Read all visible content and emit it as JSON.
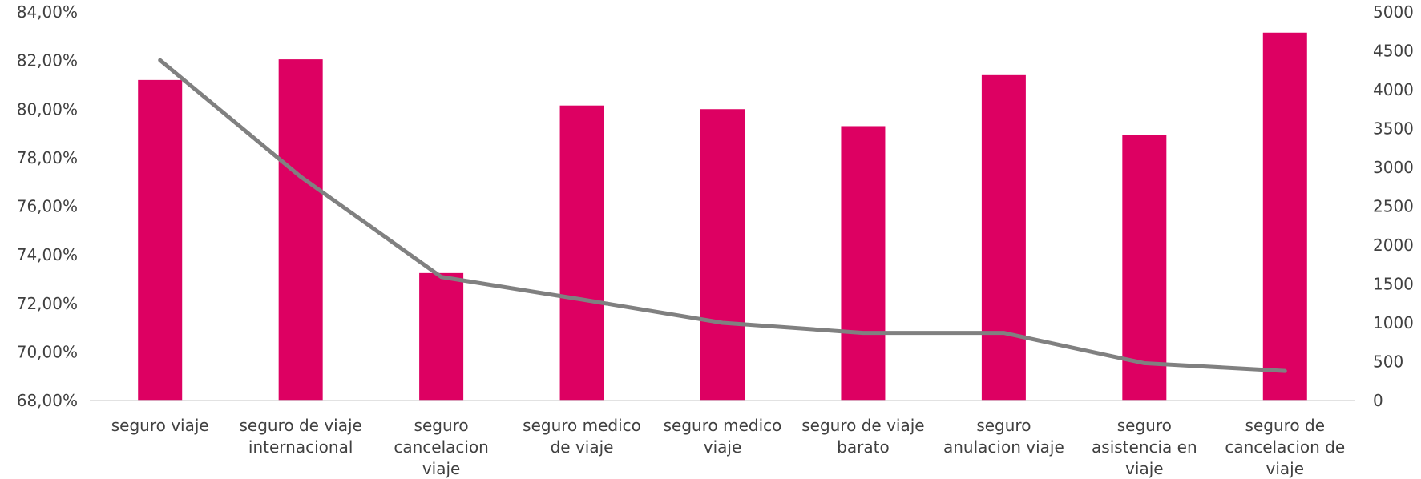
{
  "chart_data": {
    "type": "bar",
    "title": "",
    "xlabel": "",
    "categories": [
      [
        "seguro viaje"
      ],
      [
        "seguro de viaje",
        "internacional"
      ],
      [
        "seguro",
        "cancelacion",
        "viaje"
      ],
      [
        "seguro medico",
        "de viaje"
      ],
      [
        "seguro medico",
        "viaje"
      ],
      [
        "seguro de viaje",
        "barato"
      ],
      [
        "seguro",
        "anulacion viaje"
      ],
      [
        "seguro",
        "asistencia en",
        "viaje"
      ],
      [
        "seguro de",
        "cancelacion de",
        "viaje"
      ]
    ],
    "series": [
      {
        "type": "bar",
        "axis": "left",
        "color": "#DD0062",
        "values": [
          81.2,
          82.05,
          73.25,
          80.15,
          80.0,
          79.3,
          81.4,
          78.95,
          83.15
        ]
      },
      {
        "type": "line",
        "axis": "right",
        "color": "#808080",
        "values": [
          4380,
          2880,
          1590,
          1300,
          1000,
          870,
          870,
          480,
          380
        ]
      }
    ],
    "y_left": {
      "min": 68,
      "max": 84,
      "ticks": [
        "68,00%",
        "70,00%",
        "72,00%",
        "74,00%",
        "76,00%",
        "78,00%",
        "80,00%",
        "82,00%",
        "84,00%"
      ]
    },
    "y_right": {
      "min": 0,
      "max": 5000,
      "ticks": [
        "0",
        "500",
        "1000",
        "1500",
        "2000",
        "2500",
        "3000",
        "3500",
        "4000",
        "4500",
        "5000"
      ]
    },
    "grid": false,
    "legend": "none"
  }
}
